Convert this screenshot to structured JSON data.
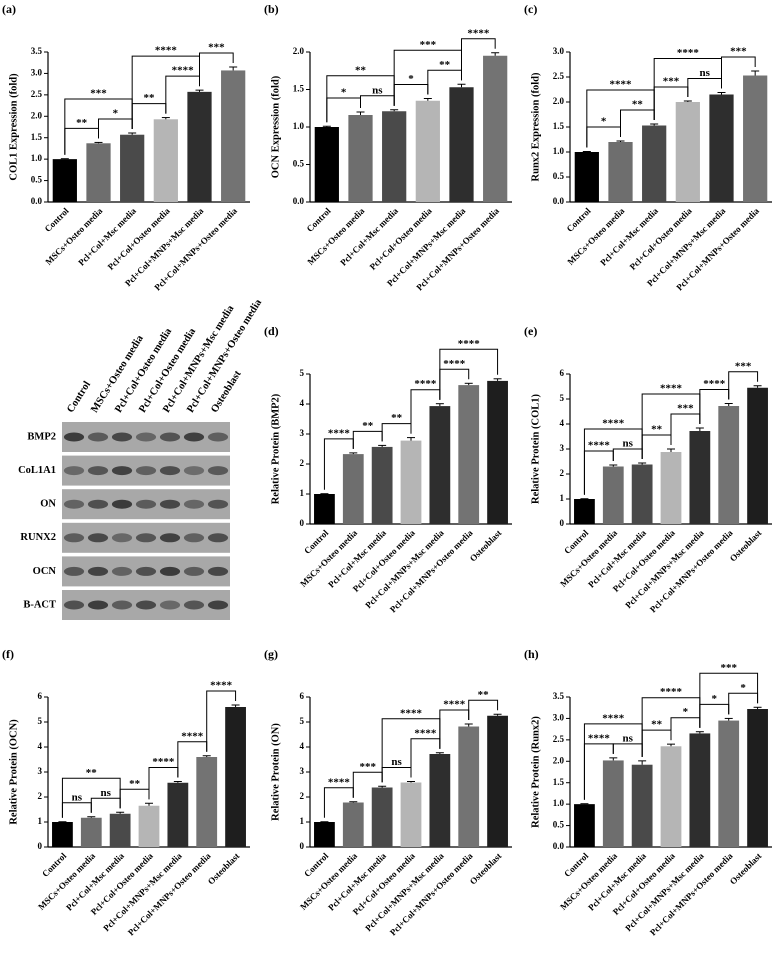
{
  "chart_data": [
    {
      "type": "bar",
      "label": "(a)",
      "y_label": "COL1 Expression (fold)",
      "categories": [
        "Control",
        "MSCs+Osteo media",
        "Pcl+Col+Msc media",
        "Pcl+Col+Osteo media",
        "Pcl+Col+MNPs+Msc media",
        "Pcl+Col+MNPs+Osteo media"
      ],
      "values": [
        1.0,
        1.37,
        1.57,
        1.93,
        2.57,
        3.07
      ],
      "errors": [
        0.01,
        0.02,
        0.04,
        0.04,
        0.04,
        0.08
      ],
      "colors": [
        "#000000",
        "#6e6e6e",
        "#4a4a4a",
        "#b5b5b5",
        "#2e2e2e",
        "#737373"
      ],
      "ylim": [
        0,
        3.5
      ],
      "yticks": [
        {
          "value": 0,
          "label": "0.0"
        },
        0.5,
        {
          "value": 1,
          "label": "1.0"
        },
        1.5,
        {
          "value": 2,
          "label": "2.0"
        },
        2.5,
        {
          "value": 3,
          "label": "3.0"
        },
        3.5
      ],
      "annotations": [
        {
          "from": "Control",
          "to": "MSCs+Osteo media",
          "label": "**"
        },
        {
          "from": "MSCs+Osteo media",
          "to": "Pcl+Col+Msc media",
          "label": "*"
        },
        {
          "from": "Pcl+Col+Msc media",
          "to": "Pcl+Col+Osteo media",
          "label": "**"
        },
        {
          "from": "Pcl+Col+Osteo media",
          "to": "Pcl+Col+MNPs+Msc media",
          "label": "****"
        },
        {
          "from": "Pcl+Col+MNPs+Msc media",
          "to": "Pcl+Col+MNPs+Osteo media",
          "label": "***"
        },
        {
          "from": "Control",
          "to": "Pcl+Col+Msc media",
          "label": "***"
        },
        {
          "from": "Pcl+Col+Msc media",
          "to": "Pcl+Col+MNPs+Msc media",
          "label": "****"
        }
      ]
    },
    {
      "type": "bar",
      "label": "(b)",
      "y_label": "OCN Expression (fold)",
      "categories": [
        "Control",
        "MSCs+Osteo media",
        "Pcl+Col+Msc media",
        "Pcl+Col+Osteo media",
        "Pcl+Col+MNPs+Msc media",
        "Pcl+Col+MNPs+Osteo media"
      ],
      "values": [
        1.0,
        1.16,
        1.21,
        1.35,
        1.53,
        1.95
      ],
      "errors": [
        0.01,
        0.04,
        0.02,
        0.03,
        0.04,
        0.04
      ],
      "colors": [
        "#000000",
        "#6e6e6e",
        "#4a4a4a",
        "#b5b5b5",
        "#2e2e2e",
        "#737373"
      ],
      "ylim": [
        0,
        2
      ],
      "yticks": [
        {
          "value": 0,
          "label": "0.0"
        },
        0.5,
        {
          "value": 1,
          "label": "1.0"
        },
        1.5,
        {
          "value": 2,
          "label": "2.0"
        }
      ],
      "annotations": [
        {
          "from": "Control",
          "to": "MSCs+Osteo media",
          "label": "*"
        },
        {
          "from": "MSCs+Osteo media",
          "to": "Pcl+Col+Msc media",
          "label": "ns"
        },
        {
          "from": "Pcl+Col+Msc media",
          "to": "Pcl+Col+Osteo media",
          "label": "*"
        },
        {
          "from": "Pcl+Col+Osteo media",
          "to": "Pcl+Col+MNPs+Msc media",
          "label": "**"
        },
        {
          "from": "Pcl+Col+MNPs+Msc media",
          "to": "Pcl+Col+MNPs+Osteo media",
          "label": "****"
        },
        {
          "from": "Control",
          "to": "Pcl+Col+Msc media",
          "label": "**"
        },
        {
          "from": "Pcl+Col+Msc media",
          "to": "Pcl+Col+MNPs+Msc media",
          "label": "***"
        }
      ]
    },
    {
      "type": "bar",
      "label": "(c)",
      "y_label": "Runx2 Expression (fold)",
      "categories": [
        "Control",
        "MSCs+Osteo media",
        "Pcl+Col+Msc media",
        "Pcl+Col+Osteo media",
        "Pcl+Col+MNPs+Msc media",
        "Pcl+Col+MNPs+Osteo media"
      ],
      "values": [
        1.0,
        1.2,
        1.53,
        2.0,
        2.15,
        2.53
      ],
      "errors": [
        0.01,
        0.02,
        0.03,
        0.02,
        0.04,
        0.09
      ],
      "colors": [
        "#000000",
        "#6e6e6e",
        "#4a4a4a",
        "#b5b5b5",
        "#2e2e2e",
        "#737373"
      ],
      "ylim": [
        0,
        3
      ],
      "yticks": [
        {
          "value": 0,
          "label": "0.0"
        },
        0.5,
        {
          "value": 1,
          "label": "1.0"
        },
        1.5,
        {
          "value": 2,
          "label": "2.0"
        },
        2.5,
        {
          "value": 3,
          "label": "3.0"
        }
      ],
      "annotations": [
        {
          "from": "Control",
          "to": "MSCs+Osteo media",
          "label": "*"
        },
        {
          "from": "MSCs+Osteo media",
          "to": "Pcl+Col+Msc media",
          "label": "**"
        },
        {
          "from": "Pcl+Col+Msc media",
          "to": "Pcl+Col+Osteo media",
          "label": "***"
        },
        {
          "from": "Pcl+Col+Osteo media",
          "to": "Pcl+Col+MNPs+Msc media",
          "label": "ns"
        },
        {
          "from": "Pcl+Col+MNPs+Msc media",
          "to": "Pcl+Col+MNPs+Osteo media",
          "label": "***"
        },
        {
          "from": "Control",
          "to": "Pcl+Col+Msc media",
          "label": "****"
        },
        {
          "from": "Pcl+Col+Msc media",
          "to": "Pcl+Col+MNPs+Msc media",
          "label": "****"
        }
      ]
    },
    {
      "type": "bar",
      "label": "(d)",
      "y_label": "Relative Protein (BMP2)",
      "categories": [
        "Control",
        "MSCs+Osteo media",
        "Pcl+Col+Msc media",
        "Pcl+Col+Osteo media",
        "Pcl+Col+MNPs+Msc media",
        "Pcl+Col+MNPs+Osteo media",
        "Osteoblast"
      ],
      "values": [
        1.0,
        2.33,
        2.57,
        2.78,
        3.93,
        4.63,
        4.77
      ],
      "errors": [
        0.01,
        0.04,
        0.05,
        0.1,
        0.08,
        0.06,
        0.07
      ],
      "colors": [
        "#000000",
        "#6e6e6e",
        "#4a4a4a",
        "#b5b5b5",
        "#2e2e2e",
        "#737373",
        "#1e1e1e"
      ],
      "ylim": [
        0,
        5
      ],
      "yticks": [
        0,
        1,
        2,
        3,
        4,
        5
      ],
      "annotations": [
        {
          "from": "Control",
          "to": "MSCs+Osteo media",
          "label": "****"
        },
        {
          "from": "Pcl+Col+Msc media",
          "to": "Pcl+Col+Osteo media",
          "label": "**"
        },
        {
          "from": "Pcl+Col+MNPs+Msc media",
          "to": "Pcl+Col+MNPs+Osteo media",
          "label": "****"
        },
        {
          "from": "MSCs+Osteo media",
          "to": "Pcl+Col+Msc media",
          "label": "**"
        },
        {
          "from": "Pcl+Col+Osteo media",
          "to": "Pcl+Col+MNPs+Msc media",
          "label": "****"
        },
        {
          "from": "Pcl+Col+MNPs+Msc media",
          "to": "Osteoblast",
          "label": "****"
        }
      ]
    },
    {
      "type": "bar",
      "label": "(e)",
      "y_label": "Relative Protein (COL1)",
      "categories": [
        "Control",
        "MSCs+Osteo media",
        "Pcl+Col+Msc media",
        "Pcl+Col+Osteo media",
        "Pcl+Col+MNPs+Msc media",
        "Pcl+Col+MNPs+Osteo media",
        "Osteoblast"
      ],
      "values": [
        1.0,
        2.3,
        2.38,
        2.88,
        3.72,
        4.72,
        5.45
      ],
      "errors": [
        0.01,
        0.06,
        0.06,
        0.12,
        0.12,
        0.1,
        0.08
      ],
      "colors": [
        "#000000",
        "#6e6e6e",
        "#4a4a4a",
        "#b5b5b5",
        "#2e2e2e",
        "#737373",
        "#1e1e1e"
      ],
      "ylim": [
        0,
        6
      ],
      "yticks": [
        0,
        1,
        2,
        3,
        4,
        5,
        6
      ],
      "annotations": [
        {
          "from": "Control",
          "to": "MSCs+Osteo media",
          "label": "****"
        },
        {
          "from": "MSCs+Osteo media",
          "to": "Pcl+Col+Msc media",
          "label": "ns"
        },
        {
          "from": "Pcl+Col+Msc media",
          "to": "Pcl+Col+Osteo media",
          "label": "**"
        },
        {
          "from": "Pcl+Col+Osteo media",
          "to": "Pcl+Col+MNPs+Msc media",
          "label": "***"
        },
        {
          "from": "Pcl+Col+MNPs+Osteo media",
          "to": "Osteoblast",
          "label": "***"
        },
        {
          "from": "Control",
          "to": "Pcl+Col+Msc media",
          "label": "****"
        },
        {
          "from": "Pcl+Col+Msc media",
          "to": "Pcl+Col+MNPs+Msc media",
          "label": "****"
        },
        {
          "from": "Pcl+Col+MNPs+Msc media",
          "to": "Pcl+Col+MNPs+Osteo media",
          "label": "****"
        }
      ]
    },
    {
      "type": "bar",
      "label": "(f)",
      "y_label": "Relative Protein (OCN)",
      "categories": [
        "Control",
        "MSCs+Osteo media",
        "Pcl+Col+Msc media",
        "Pcl+Col+Osteo media",
        "Pcl+Col+MNPs+Msc media",
        "Pcl+Col+MNPs+Osteo media",
        "Osteoblast"
      ],
      "values": [
        1.0,
        1.17,
        1.33,
        1.65,
        2.57,
        3.6,
        5.6
      ],
      "errors": [
        0.01,
        0.04,
        0.06,
        0.1,
        0.05,
        0.05,
        0.08
      ],
      "colors": [
        "#000000",
        "#6e6e6e",
        "#4a4a4a",
        "#b5b5b5",
        "#2e2e2e",
        "#737373",
        "#1e1e1e"
      ],
      "ylim": [
        0,
        6
      ],
      "yticks": [
        0,
        1,
        2,
        3,
        4,
        5,
        6
      ],
      "annotations": [
        {
          "from": "Control",
          "to": "MSCs+Osteo media",
          "label": "ns"
        },
        {
          "from": "MSCs+Osteo media",
          "to": "Pcl+Col+Msc media",
          "label": "ns"
        },
        {
          "from": "Pcl+Col+Msc media",
          "to": "Pcl+Col+Osteo media",
          "label": "**"
        },
        {
          "from": "Pcl+Col+MNPs+Msc media",
          "to": "Pcl+Col+MNPs+Osteo media",
          "label": "****"
        },
        {
          "from": "Control",
          "to": "Pcl+Col+Msc media",
          "label": "**"
        },
        {
          "from": "Pcl+Col+Osteo media",
          "to": "Pcl+Col+MNPs+Msc media",
          "label": "****"
        },
        {
          "from": "Pcl+Col+MNPs+Osteo media",
          "to": "Osteoblast",
          "label": "****"
        }
      ]
    },
    {
      "type": "bar",
      "label": "(g)",
      "y_label": "Relative Protein (ON)",
      "categories": [
        "Control",
        "MSCs+Osteo media",
        "Pcl+Col+Msc media",
        "Pcl+Col+Osteo media",
        "Pcl+Col+MNPs+Msc media",
        "Pcl+Col+MNPs+Osteo media",
        "Osteoblast"
      ],
      "values": [
        1.0,
        1.78,
        2.38,
        2.58,
        3.72,
        4.82,
        5.25
      ],
      "errors": [
        0.01,
        0.03,
        0.05,
        0.04,
        0.05,
        0.1,
        0.06
      ],
      "colors": [
        "#000000",
        "#6e6e6e",
        "#4a4a4a",
        "#b5b5b5",
        "#2e2e2e",
        "#737373",
        "#1e1e1e"
      ],
      "ylim": [
        0,
        6
      ],
      "yticks": [
        0,
        1,
        2,
        3,
        4,
        5,
        6
      ],
      "annotations": [
        {
          "from": "Control",
          "to": "MSCs+Osteo media",
          "label": "****"
        },
        {
          "from": "Pcl+Col+Msc media",
          "to": "Pcl+Col+Osteo media",
          "label": "ns"
        },
        {
          "from": "Pcl+Col+Osteo media",
          "to": "Pcl+Col+MNPs+Msc media",
          "label": "****"
        },
        {
          "from": "Pcl+Col+MNPs+Osteo media",
          "to": "Osteoblast",
          "label": "**"
        },
        {
          "from": "MSCs+Osteo media",
          "to": "Pcl+Col+Msc media",
          "label": "***"
        },
        {
          "from": "Pcl+Col+Msc media",
          "to": "Pcl+Col+MNPs+Msc media",
          "label": "****"
        },
        {
          "from": "Pcl+Col+MNPs+Msc media",
          "to": "Pcl+Col+MNPs+Osteo media",
          "label": "****"
        }
      ]
    },
    {
      "type": "bar",
      "label": "(h)",
      "y_label": "Relative Protein (Runx2)",
      "categories": [
        "Control",
        "MSCs+Osteo media",
        "Pcl+Col+Msc media",
        "Pcl+Col+Osteo media",
        "Pcl+Col+MNPs+Msc media",
        "Pcl+Col+MNPs+Osteo media",
        "Osteoblast"
      ],
      "values": [
        1.0,
        2.02,
        1.92,
        2.35,
        2.65,
        2.95,
        3.22
      ],
      "errors": [
        0.01,
        0.06,
        0.09,
        0.05,
        0.04,
        0.05,
        0.04
      ],
      "colors": [
        "#000000",
        "#6e6e6e",
        "#4a4a4a",
        "#b5b5b5",
        "#2e2e2e",
        "#737373",
        "#1e1e1e"
      ],
      "ylim": [
        0,
        3.5
      ],
      "yticks": [
        {
          "value": 0,
          "label": "0.0"
        },
        0.5,
        {
          "value": 1,
          "label": "1.0"
        },
        1.5,
        {
          "value": 2,
          "label": "2.0"
        },
        2.5,
        {
          "value": 3,
          "label": "3.0"
        },
        3.5
      ],
      "annotations": [
        {
          "from": "Control",
          "to": "MSCs+Osteo media",
          "label": "****"
        },
        {
          "from": "MSCs+Osteo media",
          "to": "Pcl+Col+Msc media",
          "label": "ns"
        },
        {
          "from": "Pcl+Col+Msc media",
          "to": "Pcl+Col+Osteo media",
          "label": "**"
        },
        {
          "from": "Pcl+Col+Osteo media",
          "to": "Pcl+Col+MNPs+Msc media",
          "label": "*"
        },
        {
          "from": "Pcl+Col+MNPs+Msc media",
          "to": "Pcl+Col+MNPs+Osteo media",
          "label": "*"
        },
        {
          "from": "Pcl+Col+MNPs+Osteo media",
          "to": "Osteoblast",
          "label": "*"
        },
        {
          "from": "Control",
          "to": "Pcl+Col+Msc media",
          "label": "****"
        },
        {
          "from": "Pcl+Col+Msc media",
          "to": "Pcl+Col+MNPs+Msc media",
          "label": "****"
        },
        {
          "from": "Pcl+Col+MNPs+Msc media",
          "to": "Osteoblast",
          "label": "***"
        }
      ]
    }
  ],
  "blot": {
    "lanes": [
      "Control",
      "MSCs+Osteo media",
      "Pcl+Col+Osteo media",
      "Pcl+Col+Osteo media",
      "Pcl+Col+MNPs+Msc media",
      "Pcl+Col+MNPs+Osteo media",
      "Osteoblast"
    ],
    "rows": [
      "BMP2",
      "CoL1A1",
      "ON",
      "RUNX2",
      "OCN",
      "B-ACT"
    ]
  }
}
